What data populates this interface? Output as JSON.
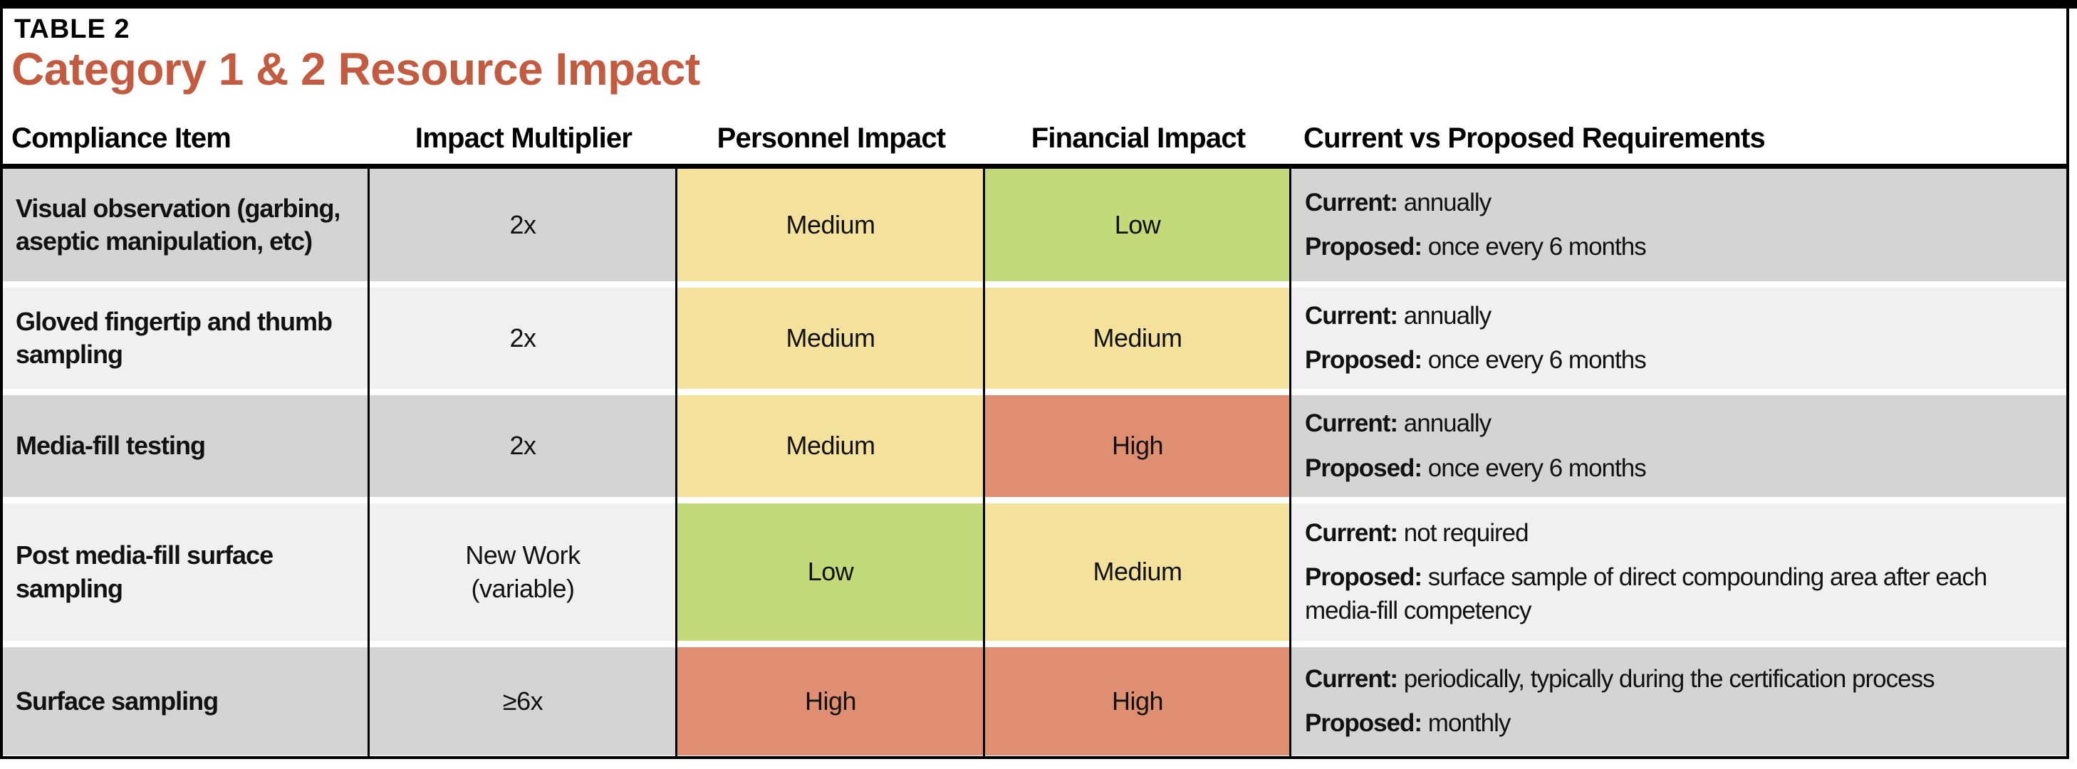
{
  "table_label": "TABLE 2",
  "title": "Category 1 & 2 Resource Impact",
  "columns": [
    "Compliance Item",
    "Impact Multiplier",
    "Personnel Impact",
    "Financial Impact",
    "Current vs Proposed Requirements"
  ],
  "colors": {
    "title_accent": "#c25b40",
    "row_dark": "#d4d4d4",
    "row_light": "#f0f0f0",
    "impact_yellow": "#f3e19c",
    "impact_green": "#c3d97a",
    "impact_red": "#e08e72",
    "rule_black": "#000000"
  },
  "rows": [
    {
      "item": "Visual observation (garbing, aseptic manipulation, etc)",
      "multiplier": "2x",
      "personnel": {
        "level": "Medium",
        "color": "yellow"
      },
      "financial": {
        "level": "Low",
        "color": "green"
      },
      "requirements": [
        {
          "label": "Current:",
          "text": "annually"
        },
        {
          "label": "Proposed:",
          "text": "once every 6 months"
        }
      ],
      "shade": "dark"
    },
    {
      "item": "Gloved fingertip and thumb sampling",
      "multiplier": "2x",
      "personnel": {
        "level": "Medium",
        "color": "yellow"
      },
      "financial": {
        "level": "Medium",
        "color": "yellow"
      },
      "requirements": [
        {
          "label": "Current:",
          "text": "annually"
        },
        {
          "label": "Proposed:",
          "text": "once every 6 months"
        }
      ],
      "shade": "light"
    },
    {
      "item": "Media-fill testing",
      "multiplier": "2x",
      "personnel": {
        "level": "Medium",
        "color": "yellow"
      },
      "financial": {
        "level": "High",
        "color": "red"
      },
      "requirements": [
        {
          "label": "Current:",
          "text": "annually"
        },
        {
          "label": "Proposed:",
          "text": "once every 6 months"
        }
      ],
      "shade": "dark"
    },
    {
      "item": "Post media-fill surface sampling",
      "multiplier": "New Work\n(variable)",
      "personnel": {
        "level": "Low",
        "color": "green"
      },
      "financial": {
        "level": "Medium",
        "color": "yellow"
      },
      "requirements": [
        {
          "label": "Current:",
          "text": "not required"
        },
        {
          "label": "Proposed:",
          "text": "surface sample of direct compounding area after each media-fill competency"
        }
      ],
      "shade": "light"
    },
    {
      "item": "Surface sampling",
      "multiplier": "≥6x",
      "personnel": {
        "level": "High",
        "color": "red"
      },
      "financial": {
        "level": "High",
        "color": "red"
      },
      "requirements": [
        {
          "label": "Current:",
          "text": "periodically, typically during the certification process"
        },
        {
          "label": "Proposed:",
          "text": "monthly"
        }
      ],
      "shade": "dark"
    }
  ]
}
